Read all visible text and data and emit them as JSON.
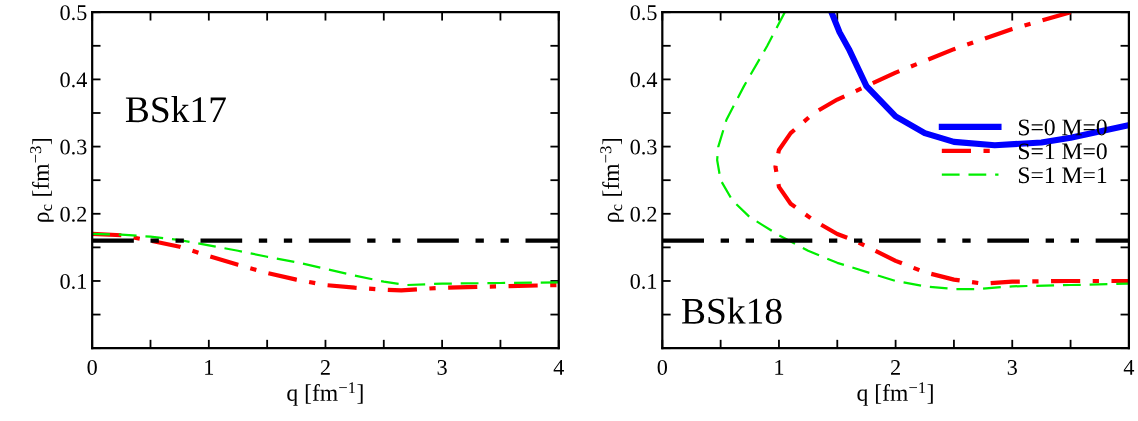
{
  "chart_data": [
    {
      "type": "line",
      "xlabel": "q [fm$^{−1}$]",
      "ylabel": "ρ$_{c}$ [fm$^{−3}$]",
      "annotations": [
        "BSk17"
      ],
      "xlim": [
        0,
        4
      ],
      "ylim": [
        0,
        0.5
      ],
      "xticks": [
        0,
        {
          "value": 0.5,
          "label": null
        },
        1,
        {
          "value": 1.5,
          "label": null
        },
        2,
        {
          "value": 2.5,
          "label": null
        },
        3,
        {
          "value": 3.5,
          "label": null
        },
        4
      ],
      "yticks": [
        {
          "value": 0,
          "label": null
        },
        {
          "value": 0.05,
          "label": null
        },
        0.1,
        {
          "value": 0.15,
          "label": null
        },
        0.2,
        {
          "value": 0.25,
          "label": null
        },
        0.3,
        {
          "value": 0.35,
          "label": null
        },
        0.4,
        {
          "value": 0.45,
          "label": null
        },
        0.5
      ],
      "grid": false,
      "legend": false,
      "ref_lines": [
        {
          "axis": "y",
          "value": 0.16,
          "color": "#000000",
          "line_style": "dashdotdot"
        }
      ],
      "series": [
        {
          "color": "#ff0000",
          "line_style": "dashdot",
          "x": [
            0,
            0.25,
            0.5,
            0.75,
            1,
            1.25,
            1.5,
            1.75,
            2,
            2.25,
            2.5,
            2.65,
            3,
            3.5,
            4
          ],
          "values": [
            0.17,
            0.168,
            0.16,
            0.151,
            0.137,
            0.124,
            0.112,
            0.102,
            0.094,
            0.09,
            0.087,
            0.086,
            0.09,
            0.092,
            0.094
          ]
        },
        {
          "color": "#00ee00",
          "line_style": "dashed",
          "x": [
            0,
            0.25,
            0.5,
            0.75,
            1,
            1.25,
            1.5,
            1.75,
            2,
            2.25,
            2.5,
            2.7,
            3,
            3.5,
            4
          ],
          "values": [
            0.17,
            0.169,
            0.166,
            0.161,
            0.153,
            0.145,
            0.136,
            0.128,
            0.118,
            0.108,
            0.099,
            0.094,
            0.096,
            0.097,
            0.098
          ]
        }
      ]
    },
    {
      "type": "line",
      "xlabel": "q [fm$^{−1}$]",
      "ylabel": "ρ$_{c}$ [fm$^{−3}$]",
      "annotations": [
        "BSk18"
      ],
      "xlim": [
        0,
        4
      ],
      "ylim": [
        0,
        0.5
      ],
      "xticks": [
        0,
        {
          "value": 0.5,
          "label": null
        },
        1,
        {
          "value": 1.5,
          "label": null
        },
        2,
        {
          "value": 2.5,
          "label": null
        },
        3,
        {
          "value": 3.5,
          "label": null
        },
        4
      ],
      "yticks": [
        {
          "value": 0,
          "label": null
        },
        {
          "value": 0.05,
          "label": null
        },
        0.1,
        {
          "value": 0.15,
          "label": null
        },
        0.2,
        {
          "value": 0.25,
          "label": null
        },
        0.3,
        {
          "value": 0.35,
          "label": null
        },
        0.4,
        {
          "value": 0.45,
          "label": null
        },
        0.5
      ],
      "grid": false,
      "legend": "right",
      "ref_lines": [
        {
          "axis": "y",
          "value": 0.16,
          "color": "#000000",
          "line_style": "dashdotdot"
        }
      ],
      "series": [
        {
          "name": "S=0 M=0",
          "color": "#0000ff",
          "line_style": "solid",
          "x": [
            1.45,
            1.52,
            1.6,
            1.75,
            2.0,
            2.25,
            2.5,
            2.85,
            3.25,
            3.5,
            4
          ],
          "values": [
            0.5,
            0.47,
            0.445,
            0.39,
            0.345,
            0.32,
            0.307,
            0.302,
            0.306,
            0.313,
            0.332
          ]
        },
        {
          "name": "S=1 M=0",
          "color": "#ff0000",
          "line_style": "dashdot",
          "x": [
            3.5,
            3.0,
            2.5,
            2.0,
            1.75,
            1.5,
            1.3,
            1.1,
            1.0,
            0.97,
            1.0,
            1.1,
            1.3,
            1.5,
            1.65,
            2.0,
            2.25,
            2.5,
            2.75,
            3.0,
            3.5,
            4
          ],
          "values": [
            0.5,
            0.475,
            0.445,
            0.41,
            0.39,
            0.37,
            0.35,
            0.32,
            0.295,
            0.27,
            0.24,
            0.215,
            0.19,
            0.17,
            0.16,
            0.13,
            0.113,
            0.102,
            0.096,
            0.099,
            0.1,
            0.1
          ]
        },
        {
          "name": "S=1 M=1",
          "color": "#00ee00",
          "line_style": "dashed",
          "x": [
            1.05,
            0.9,
            0.7,
            0.55,
            0.48,
            0.47,
            0.5,
            0.6,
            0.75,
            1.0,
            1.25,
            1.5,
            2.0,
            2.25,
            2.5,
            2.7,
            3.0,
            3.5,
            4
          ],
          "values": [
            0.5,
            0.45,
            0.39,
            0.34,
            0.3,
            0.28,
            0.25,
            0.22,
            0.195,
            0.168,
            0.145,
            0.127,
            0.1,
            0.092,
            0.088,
            0.088,
            0.092,
            0.094,
            0.096
          ]
        }
      ]
    }
  ]
}
